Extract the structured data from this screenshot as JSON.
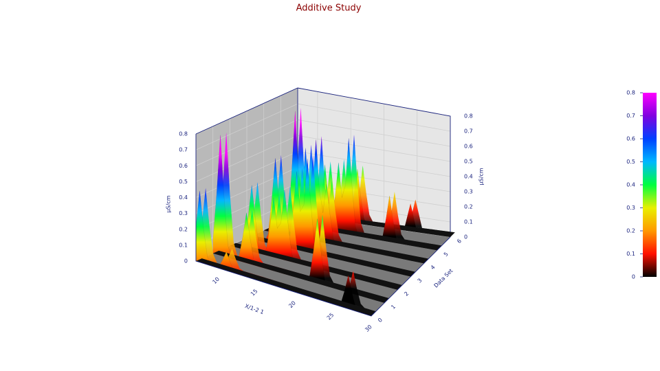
{
  "chart_data": {
    "type": "waterfall3d",
    "title": "Additive Study",
    "xlabel": "X/1-2 1",
    "ylabel": "Data Set",
    "zlabel": "µS/cm",
    "xlim": [
      7,
      30
    ],
    "xticks": [
      10,
      15,
      20,
      25,
      30
    ],
    "ylim": [
      0,
      6
    ],
    "yticks": [
      0,
      1,
      2,
      3,
      4,
      5,
      6
    ],
    "zlim": [
      0,
      0.8
    ],
    "zticks": [
      0,
      0.1,
      0.2,
      0.3,
      0.4,
      0.5,
      0.6,
      0.7,
      0.8
    ],
    "grid": true,
    "colorbar": {
      "lim": [
        0,
        0.8
      ],
      "ticks": [
        0,
        0.1,
        0.2,
        0.3,
        0.4,
        0.5,
        0.6,
        0.7,
        0.8
      ],
      "colors": [
        "#000000",
        "#ff1000",
        "#ff9900",
        "#e8f000",
        "#00ff40",
        "#00b8ff",
        "#0040ff",
        "#8000e0",
        "#ff00ff"
      ]
    },
    "x": [
      7,
      7.5,
      8,
      8.5,
      9,
      9.5,
      10,
      10.5,
      11,
      11.5,
      12,
      12.5,
      13,
      13.5,
      14,
      14.5,
      15,
      15.5,
      16,
      16.5,
      17,
      17.5,
      18,
      18.5,
      19,
      19.5,
      20,
      20.5,
      21,
      21.5,
      22,
      22.5,
      23,
      23.5,
      24,
      24.5,
      25,
      25.5,
      26,
      26.5,
      27,
      27.5,
      28,
      28.5,
      29,
      29.5,
      30
    ],
    "series": [
      {
        "values": [
          0.22,
          0.45,
          0.22,
          0.05,
          0,
          0,
          0.01,
          0.06,
          0.12,
          0.06,
          0.01,
          0,
          0,
          0,
          0,
          0,
          0,
          0,
          0,
          0,
          0,
          0,
          0,
          0,
          0,
          0,
          0,
          0,
          0,
          0,
          0,
          0,
          0,
          0,
          0,
          0,
          0,
          0,
          0.02,
          0.11,
          0.22,
          0.11,
          0.02,
          0,
          0,
          0,
          0
        ]
      },
      {
        "values": [
          0.08,
          0.38,
          0.76,
          0.38,
          0.08,
          0,
          0,
          0.03,
          0.16,
          0.32,
          0.16,
          0.03,
          0,
          0,
          0,
          0,
          0,
          0,
          0,
          0,
          0,
          0,
          0,
          0,
          0,
          0,
          0.04,
          0.21,
          0.42,
          0.21,
          0.04,
          0,
          0,
          0,
          0,
          0,
          0,
          0,
          0,
          0,
          0,
          0,
          0,
          0,
          0,
          0,
          0
        ]
      },
      {
        "values": [
          0,
          0,
          0,
          0,
          0.04,
          0.21,
          0.42,
          0.21,
          0.04,
          0,
          0.04,
          0.19,
          0.38,
          0.19,
          0.23,
          0.45,
          0.23,
          0.05,
          0,
          0,
          0,
          0,
          0,
          0,
          0,
          0,
          0,
          0,
          0,
          0,
          0,
          0,
          0,
          0,
          0,
          0,
          0,
          0,
          0,
          0,
          0,
          0,
          0,
          0,
          0,
          0,
          0
        ]
      },
      {
        "values": [
          0,
          0,
          0,
          0,
          0,
          0,
          0.06,
          0.28,
          0.55,
          0.28,
          0.06,
          0,
          0.05,
          0.25,
          0.5,
          0.25,
          0.3,
          0.6,
          0.3,
          0.06,
          0,
          0,
          0,
          0,
          0,
          0,
          0,
          0,
          0,
          0,
          0,
          0,
          0,
          0,
          0,
          0,
          0,
          0,
          0,
          0,
          0,
          0,
          0,
          0,
          0,
          0,
          0
        ]
      },
      {
        "values": [
          0,
          0,
          0,
          0,
          0,
          0,
          0,
          0.08,
          0.4,
          0.8,
          0.4,
          0.29,
          0.58,
          0.29,
          0.33,
          0.65,
          0.33,
          0.19,
          0.38,
          0.19,
          0.04,
          0,
          0,
          0,
          0,
          0,
          0,
          0,
          0,
          0,
          0,
          0,
          0,
          0,
          0,
          0,
          0,
          0,
          0,
          0,
          0,
          0,
          0,
          0,
          0,
          0,
          0
        ]
      },
      {
        "values": [
          0,
          0,
          0,
          0,
          0,
          0,
          0,
          0,
          0,
          0,
          0,
          0.04,
          0.21,
          0.42,
          0.21,
          0.05,
          0.23,
          0.45,
          0.23,
          0.31,
          0.62,
          0.31,
          0.06,
          0,
          0,
          0,
          0,
          0,
          0,
          0,
          0.03,
          0.15,
          0.3,
          0.15,
          0.03,
          0,
          0,
          0,
          0,
          0,
          0,
          0,
          0,
          0,
          0,
          0,
          0
        ]
      },
      {
        "values": [
          0,
          0,
          0,
          0,
          0,
          0,
          0,
          0,
          0,
          0,
          0,
          0,
          0,
          0.12,
          0.25,
          0.12,
          0.03,
          0.18,
          0.35,
          0.18,
          0.04,
          0,
          0,
          0,
          0,
          0,
          0,
          0,
          0,
          0,
          0,
          0,
          0,
          0.09,
          0.18,
          0.09,
          0,
          0,
          0,
          0,
          0,
          0,
          0,
          0,
          0,
          0,
          0
        ]
      }
    ]
  }
}
